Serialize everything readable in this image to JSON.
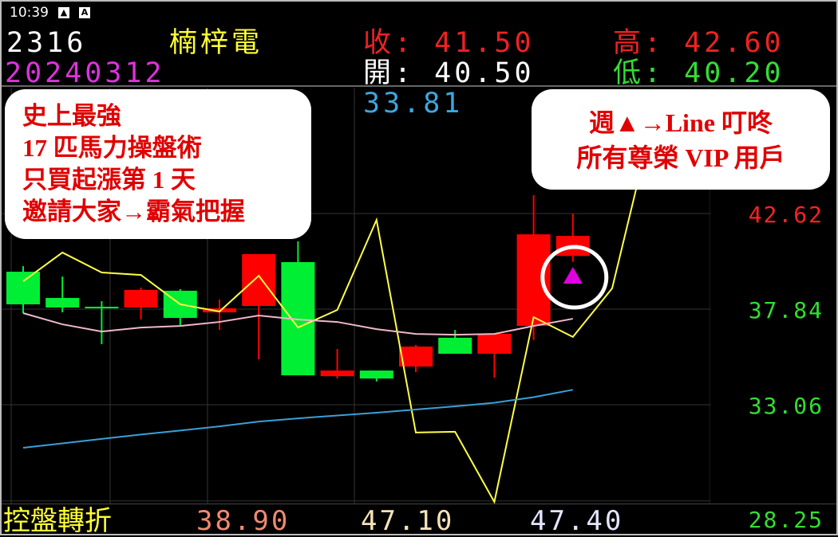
{
  "status_bar": {
    "time": "10:39",
    "icons": [
      "image-icon",
      "a-badge-icon"
    ]
  },
  "quote": {
    "code": "2316",
    "name": "楠梓電",
    "date": "20240312",
    "close_label": "收:",
    "close": "41.50",
    "high_label": "高:",
    "high": "42.60",
    "open_label": "開:",
    "open": "40.50",
    "low_label": "低:",
    "low": "40.20",
    "ma_value": "33.81"
  },
  "notes": {
    "left": [
      "史上最強",
      "17 匹馬力操盤術",
      "只買起漲第 1 天",
      "邀請大家→霸氣把握"
    ],
    "right": [
      "週▲→Line  叮咚",
      "所有尊榮 VIP 用戶"
    ]
  },
  "bottom_bar": {
    "label": "控盤轉折",
    "values": [
      "38.90",
      "47.10",
      "47.40"
    ],
    "colors": [
      "#f08a70",
      "#f5e2b8",
      "#e4e4ff"
    ]
  },
  "colors": {
    "up": "#ff0000",
    "down": "#00ee33",
    "yellow_line": "#ffff44",
    "pink_line": "#f0b8c8",
    "blue_line": "#3aa0d8",
    "signal": "#e000e0"
  },
  "chart_data": {
    "type": "candlestick",
    "y_ticks": [
      "42.62",
      "37.84",
      "33.06",
      "28.25"
    ],
    "y_tick_values": [
      42.62,
      37.84,
      33.06,
      28.25
    ],
    "y_tick_colors": [
      "#ff2222",
      "#33dd33",
      "#33dd33",
      "#33dd33"
    ],
    "grid": true,
    "candles": [
      {
        "o": 39.71,
        "h": 39.99,
        "l": 37.64,
        "c": 38.08
      },
      {
        "o": 38.4,
        "h": 39.47,
        "l": 37.68,
        "c": 37.92
      },
      {
        "o": 37.96,
        "h": 38.24,
        "l": 36.09,
        "c": 37.92
      },
      {
        "o": 37.92,
        "h": 38.92,
        "l": 37.32,
        "c": 38.8
      },
      {
        "o": 38.76,
        "h": 38.84,
        "l": 37.04,
        "c": 37.4
      },
      {
        "o": 37.68,
        "h": 38.32,
        "l": 36.8,
        "c": 37.88
      },
      {
        "o": 38.0,
        "h": 40.59,
        "l": 35.33,
        "c": 40.59
      },
      {
        "o": 40.19,
        "h": 41.23,
        "l": 34.53,
        "c": 34.53
      },
      {
        "o": 34.49,
        "h": 35.85,
        "l": 34.37,
        "c": 34.77
      },
      {
        "o": 34.77,
        "h": 34.77,
        "l": 34.22,
        "c": 34.37
      },
      {
        "o": 34.97,
        "h": 36.05,
        "l": 34.69,
        "c": 35.97
      },
      {
        "o": 36.41,
        "h": 36.8,
        "l": 35.61,
        "c": 35.61
      },
      {
        "o": 35.61,
        "h": 36.61,
        "l": 34.41,
        "c": 36.61
      },
      {
        "o": 37.0,
        "h": 43.54,
        "l": 36.29,
        "c": 41.58
      },
      {
        "o": 40.5,
        "h": 42.6,
        "l": 40.2,
        "c": 41.5
      }
    ],
    "series": [
      {
        "color": "#ffff44",
        "values": [
          39.23,
          40.67,
          39.67,
          39.55,
          38.08,
          37.72,
          39.51,
          36.92,
          37.8,
          42.3,
          31.67,
          31.71,
          28.2,
          37.44,
          36.45,
          38.88,
          47.0
        ]
      },
      {
        "color": "#f0b8c8",
        "values": [
          37.64,
          37.08,
          36.72,
          36.92,
          37.0,
          37.2,
          37.52,
          37.32,
          37.2,
          36.84,
          36.6,
          36.56,
          36.6,
          37.0,
          37.36
        ]
      },
      {
        "color": "#3aa0d8",
        "values": [
          30.91,
          31.13,
          31.35,
          31.57,
          31.77,
          31.98,
          32.22,
          32.38,
          32.52,
          32.66,
          32.82,
          32.98,
          33.16,
          33.44,
          33.81
        ]
      }
    ],
    "signal": {
      "type": "up-triangle",
      "candle_index": 14,
      "circled": true
    }
  }
}
